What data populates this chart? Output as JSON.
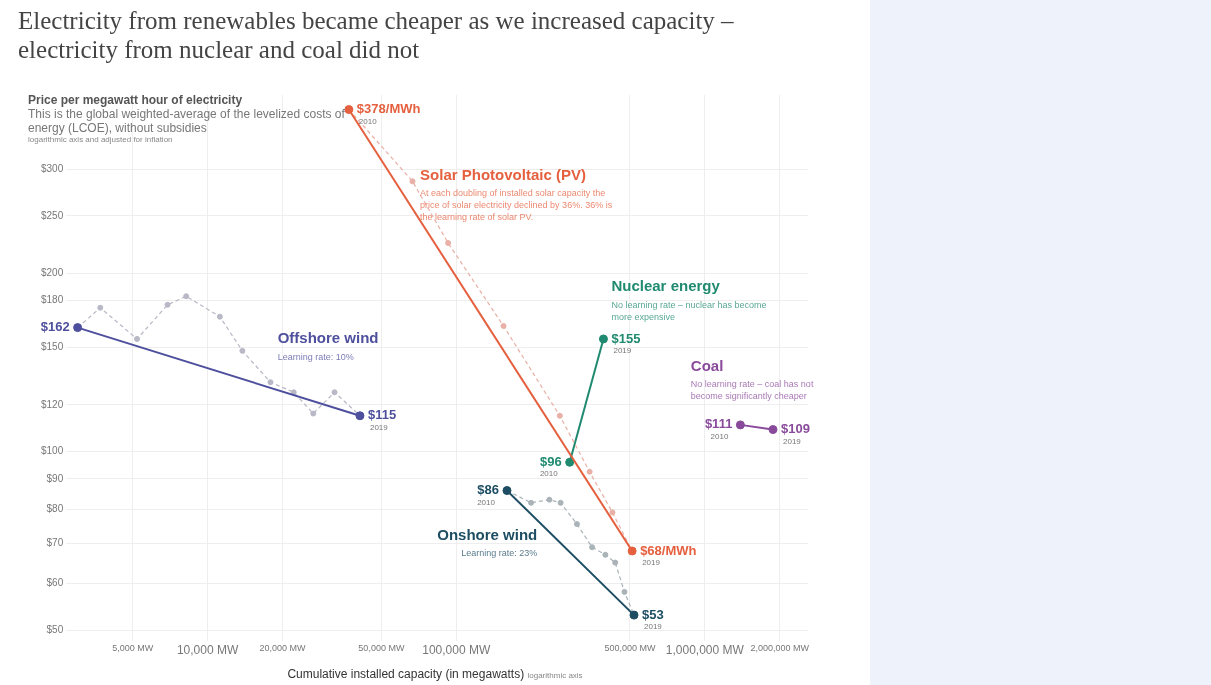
{
  "chart_data": {
    "type": "line",
    "title": "Electricity from renewables became cheaper as we increased capacity – electricity from nuclear and coal did not",
    "subtitle": "This is the global weighted-average of the levelized costs of energy (LCOE), without subsidies",
    "ylabel": "Price per megawatt hour of electricity",
    "xlabel": "Cumulative installed capacity (in megawatts)",
    "log": "xy",
    "grid": true,
    "legend": false,
    "marker": "circle",
    "xlim": [
      2700,
      2600000
    ],
    "xticks": [
      {
        "value": 5000,
        "label": "5,000 MW"
      },
      {
        "value": 10000,
        "label": "10,000 MW"
      },
      {
        "value": 20000,
        "label": "20,000 MW"
      },
      {
        "value": 50000,
        "label": "50,000 MW"
      },
      {
        "value": 100000,
        "label": "100,000 MW"
      },
      {
        "value": 500000,
        "label": "500,000 MW"
      },
      {
        "value": 1000000,
        "label": "1,000,000 MW"
      },
      {
        "value": 2000000,
        "label": "2,000,000 MW"
      }
    ],
    "ylim": [
      48,
      400
    ],
    "yticks": [
      {
        "value": 50,
        "label": "$50"
      },
      {
        "value": 60,
        "label": "$60"
      },
      {
        "value": 70,
        "label": "$70"
      },
      {
        "value": 80,
        "label": "$80"
      },
      {
        "value": 90,
        "label": "$90"
      },
      {
        "value": 100,
        "label": "$100"
      },
      {
        "value": 120,
        "label": "$120"
      },
      {
        "value": 150,
        "label": "$150"
      },
      {
        "value": 180,
        "label": "$180"
      },
      {
        "value": 200,
        "label": "$200"
      },
      {
        "value": 250,
        "label": "$250"
      },
      {
        "value": 300,
        "label": "$300"
      }
    ],
    "series": [
      {
        "name": "Solar Photovoltaic (PV)",
        "color": "#e5603f",
        "x": [
          37000,
          510000
        ],
        "values": [
          378,
          68
        ],
        "value_labels": [
          "$378/MWh",
          "$68/MWh"
        ]
      },
      {
        "color": "#e8b0a6",
        "line_style": "dashed",
        "x": [
          37000,
          66700,
          92800,
          155000,
          261000,
          344000,
          425000,
          510000
        ],
        "values": [
          378,
          286,
          225,
          163,
          115,
          92.5,
          79,
          68
        ]
      },
      {
        "name": "Offshore wind",
        "color": "#4e4f9d",
        "x": [
          3000,
          41000
        ],
        "values": [
          162,
          115
        ],
        "value_labels": [
          "$162",
          "$115"
        ]
      },
      {
        "color": "#b8b8c6",
        "line_style": "dashed",
        "x": [
          3000,
          3700,
          5200,
          6900,
          8200,
          11200,
          13800,
          17900,
          22200,
          26600,
          32400,
          41000
        ],
        "values": [
          162,
          175,
          155,
          177,
          183,
          169,
          148,
          131,
          126,
          116,
          126,
          115
        ]
      },
      {
        "name": "Nuclear energy",
        "color": "#1f8a70",
        "x": [
          286000,
          391000
        ],
        "values": [
          96,
          155
        ],
        "value_labels": [
          "$96",
          "$155"
        ]
      },
      {
        "name": "Onshore wind",
        "color": "#1d4d63",
        "x": [
          160000,
          519000
        ],
        "values": [
          86,
          53
        ],
        "value_labels": [
          "$86",
          "$53"
        ]
      },
      {
        "color": "#aab4b8",
        "line_style": "dashed",
        "x": [
          160000,
          200000,
          237000,
          263000,
          306000,
          352000,
          398000,
          436000,
          475000,
          519000
        ],
        "values": [
          86,
          82,
          83,
          82,
          75.5,
          69,
          67,
          65,
          58,
          53
        ]
      },
      {
        "name": "Coal",
        "color": "#8a4a9b",
        "x": [
          1390000,
          1880000
        ],
        "values": [
          111,
          109
        ],
        "value_labels": [
          "$111",
          "$109"
        ]
      }
    ],
    "annotations": [
      "logarithmic axis and adjusted for inflation",
      "logarithmic axis",
      "At each doubling of installed solar capacity the price of solar electricity declined by 36%. 36% is the learning rate of solar PV.",
      "No learning rate – nuclear has become more expensive",
      "Learning rate: 10%",
      "Learning rate: 23%",
      "No learning rate – coal has not become significantly cheaper",
      {
        "text": "2010",
        "x": 37000,
        "y": 378
      },
      {
        "text": "2019",
        "x": 510000,
        "y": 68
      },
      {
        "text": "2019",
        "x": 41000,
        "y": 115
      },
      {
        "text": "2010",
        "x": 286000,
        "y": 96
      },
      {
        "text": "2019",
        "x": 391000,
        "y": 155
      },
      {
        "text": "2010",
        "x": 160000,
        "y": 86
      },
      {
        "text": "2019",
        "x": 519000,
        "y": 53
      },
      {
        "text": "2010",
        "x": 1390000,
        "y": 111
      },
      {
        "text": "2019",
        "x": 1880000,
        "y": 109
      }
    ]
  }
}
